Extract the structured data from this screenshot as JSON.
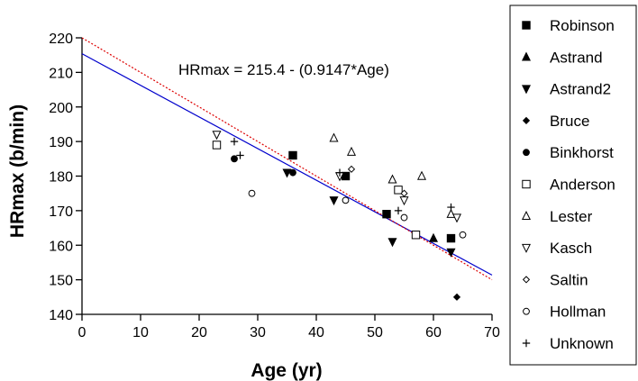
{
  "chart_data": {
    "type": "scatter",
    "title": "",
    "xlabel": "Age (yr)",
    "ylabel": "HRmax (b/min)",
    "xlim": [
      0,
      70
    ],
    "ylim": [
      140,
      220
    ],
    "xticks": [
      0,
      10,
      20,
      30,
      40,
      50,
      60,
      70
    ],
    "yticks": [
      140,
      150,
      160,
      170,
      180,
      190,
      200,
      210,
      220
    ],
    "grid": false,
    "legend_position": "right",
    "annotation": "HRmax = 215.4 - (0.9147*Age)",
    "lines": [
      {
        "style": "solid",
        "color": "#0000cc",
        "intercept": 215.4,
        "slope": -0.9147
      },
      {
        "style": "dotted",
        "color": "#dd0000",
        "intercept": 220,
        "slope": -1.0
      }
    ],
    "series": [
      {
        "name": "Robinson",
        "marker": "square-filled",
        "points": [
          [
            36,
            186
          ],
          [
            45,
            180
          ],
          [
            52,
            169
          ],
          [
            63,
            162
          ]
        ]
      },
      {
        "name": "Astrand",
        "marker": "triangle-up-filled",
        "points": [
          [
            60,
            162
          ]
        ]
      },
      {
        "name": "Astrand2",
        "marker": "triangle-down-filled",
        "points": [
          [
            35,
            181
          ],
          [
            43,
            173
          ],
          [
            53,
            161
          ],
          [
            63,
            158
          ]
        ]
      },
      {
        "name": "Bruce",
        "marker": "diamond-filled",
        "points": [
          [
            64,
            145
          ]
        ]
      },
      {
        "name": "Binkhorst",
        "marker": "circle-filled",
        "points": [
          [
            26,
            185
          ],
          [
            36,
            181
          ]
        ]
      },
      {
        "name": "Anderson",
        "marker": "square-open",
        "points": [
          [
            23,
            189
          ],
          [
            54,
            176
          ],
          [
            57,
            163
          ]
        ]
      },
      {
        "name": "Lester",
        "marker": "triangle-up-open",
        "points": [
          [
            43,
            191
          ],
          [
            46,
            187
          ],
          [
            53,
            179
          ],
          [
            58,
            180
          ],
          [
            63,
            169
          ]
        ]
      },
      {
        "name": "Kasch",
        "marker": "triangle-down-open",
        "points": [
          [
            23,
            192
          ],
          [
            44,
            180
          ],
          [
            55,
            173
          ],
          [
            64,
            168
          ]
        ]
      },
      {
        "name": "Saltin",
        "marker": "diamond-open",
        "points": [
          [
            46,
            182
          ],
          [
            55,
            175
          ]
        ]
      },
      {
        "name": "Hollman",
        "marker": "circle-open",
        "points": [
          [
            29,
            175
          ],
          [
            45,
            173
          ],
          [
            55,
            168
          ],
          [
            65,
            163
          ]
        ]
      },
      {
        "name": "Unknown",
        "marker": "plus",
        "points": [
          [
            26,
            190
          ],
          [
            27,
            186
          ],
          [
            44,
            181
          ],
          [
            54,
            170
          ],
          [
            63,
            171
          ]
        ]
      }
    ]
  }
}
